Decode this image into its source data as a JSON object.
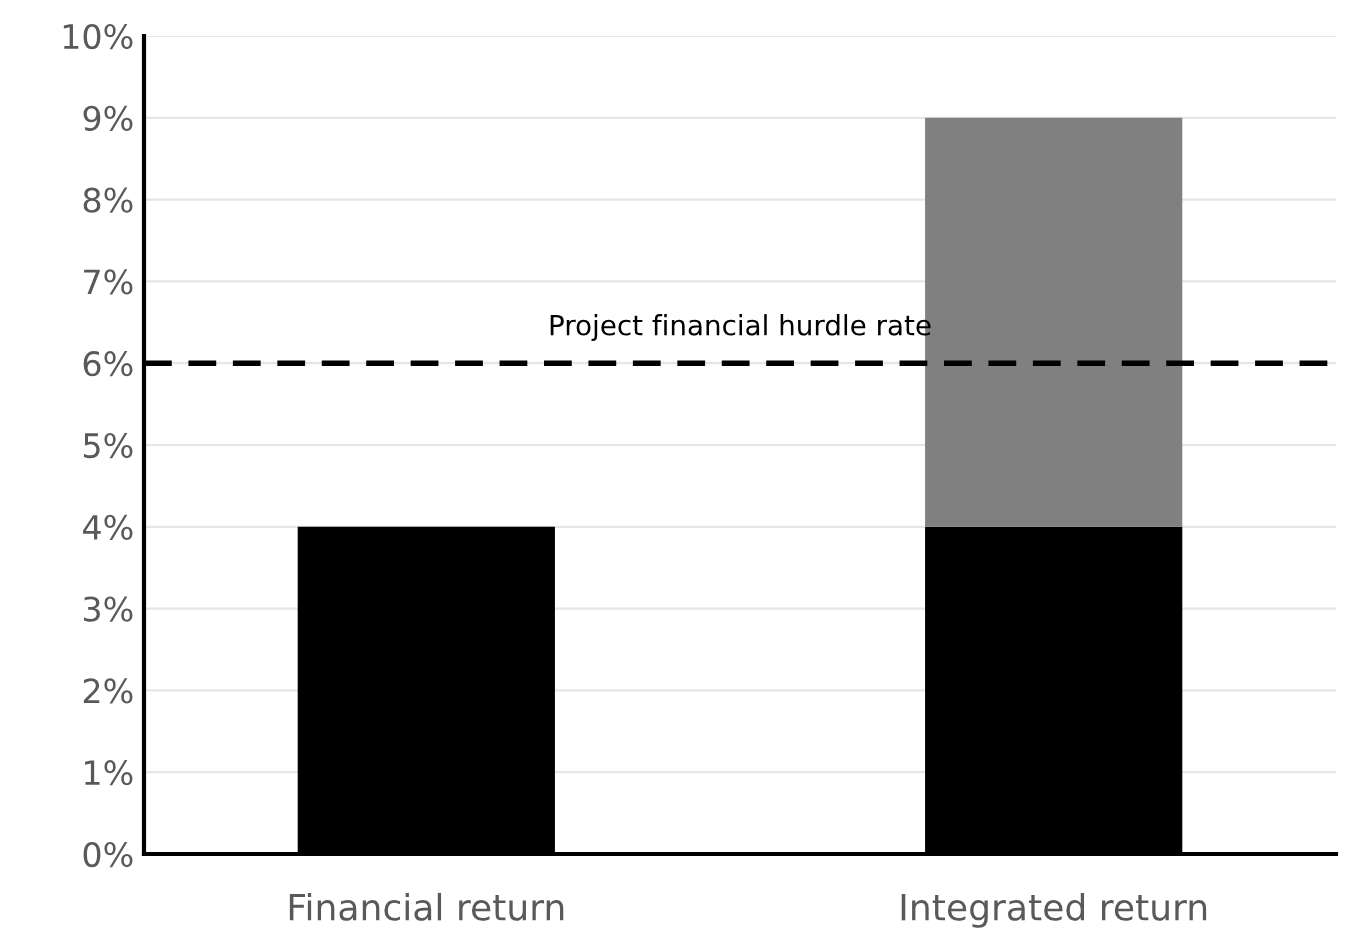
{
  "chart_data": {
    "type": "bar",
    "stacked": true,
    "categories": [
      "Financial return",
      "Integrated return"
    ],
    "series": [
      {
        "color": "#000000",
        "values": [
          4,
          4
        ]
      },
      {
        "color": "#808080",
        "values": [
          null,
          5
        ]
      }
    ],
    "ylim": [
      0,
      10
    ],
    "yticks": [
      {
        "value": 0,
        "label": "0%"
      },
      {
        "value": 1,
        "label": "1%"
      },
      {
        "value": 2,
        "label": "2%"
      },
      {
        "value": 3,
        "label": "3%"
      },
      {
        "value": 4,
        "label": "4%"
      },
      {
        "value": 5,
        "label": "5%"
      },
      {
        "value": 6,
        "label": "6%"
      },
      {
        "value": 7,
        "label": "7%"
      },
      {
        "value": 8,
        "label": "8%"
      },
      {
        "value": 9,
        "label": "9%"
      },
      {
        "value": 10,
        "label": "10%"
      }
    ],
    "grid": "y",
    "ref_lines": [
      {
        "axis": "y",
        "value": 6,
        "label": "Project financial hurdle rate",
        "color": "#000000",
        "line_style": "dashed"
      }
    ]
  }
}
